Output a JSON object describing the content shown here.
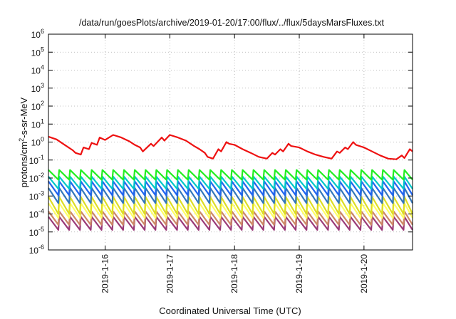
{
  "chart_data": {
    "type": "line",
    "title": "/data/run/goesPlots/archive/2019-01-20/17:00/flux/../flux/5daysMarsFluxes.txt",
    "xlabel": "Coordinated Universal Time (UTC)",
    "ylabel": "protons/cm2-s-sr-MeV",
    "ylabel_main": "protons/cm",
    "ylabel_sup": "2",
    "ylabel_rest": "-s-sr-MeV",
    "y_scale": "log",
    "ylim": [
      1e-06,
      1000000
    ],
    "y_ticks": [
      {
        "base": "10",
        "exp": "-6",
        "value": 1e-06
      },
      {
        "base": "10",
        "exp": "-5",
        "value": 1e-05
      },
      {
        "base": "10",
        "exp": "-4",
        "value": 0.0001
      },
      {
        "base": "10",
        "exp": "-3",
        "value": 0.001
      },
      {
        "base": "10",
        "exp": "-2",
        "value": 0.01
      },
      {
        "base": "10",
        "exp": "-1",
        "value": 0.1
      },
      {
        "base": "10",
        "exp": "0",
        "value": 1
      },
      {
        "base": "10",
        "exp": "1",
        "value": 10
      },
      {
        "base": "10",
        "exp": "2",
        "value": 100
      },
      {
        "base": "10",
        "exp": "3",
        "value": 1000
      },
      {
        "base": "10",
        "exp": "4",
        "value": 10000
      },
      {
        "base": "10",
        "exp": "5",
        "value": 100000
      },
      {
        "base": "10",
        "exp": "6",
        "value": 1000000
      }
    ],
    "xlim": [
      "2019-01-15T03:00",
      "2019-01-20T18:00"
    ],
    "x_ticks": [
      {
        "label": "2019-1-16",
        "value": "2019-01-16T00:00"
      },
      {
        "label": "2019-1-17",
        "value": "2019-01-17T00:00"
      },
      {
        "label": "2019-1-18",
        "value": "2019-01-18T00:00"
      },
      {
        "label": "2019-1-19",
        "value": "2019-01-19T00:00"
      },
      {
        "label": "2019-1-20",
        "value": "2019-01-20T00:00"
      }
    ],
    "grid": "dotted",
    "series": [
      {
        "color": "#ee1111",
        "x": [
          "2019-01-15T03:00",
          "2019-01-15T06:00",
          "2019-01-15T09:00",
          "2019-01-15T12:00",
          "2019-01-15T13:00",
          "2019-01-15T15:00",
          "2019-01-15T16:00",
          "2019-01-15T18:00",
          "2019-01-15T19:00",
          "2019-01-15T21:00",
          "2019-01-15T22:00",
          "2019-01-16T00:00",
          "2019-01-16T03:00",
          "2019-01-16T06:00",
          "2019-01-16T09:00",
          "2019-01-16T11:00",
          "2019-01-16T13:00",
          "2019-01-16T14:00",
          "2019-01-16T17:00",
          "2019-01-16T18:00",
          "2019-01-16T21:00",
          "2019-01-16T22:00",
          "2019-01-17T00:00",
          "2019-01-17T03:00",
          "2019-01-17T06:00",
          "2019-01-17T09:00",
          "2019-01-17T11:00",
          "2019-01-17T13:00",
          "2019-01-17T14:00",
          "2019-01-17T16:00",
          "2019-01-17T18:00",
          "2019-01-17T19:00",
          "2019-01-17T21:00",
          "2019-01-17T22:00",
          "2019-01-18T00:00",
          "2019-01-18T03:00",
          "2019-01-18T06:00",
          "2019-01-18T09:00",
          "2019-01-18T12:00",
          "2019-01-18T14:00",
          "2019-01-18T15:00",
          "2019-01-18T17:00",
          "2019-01-18T18:00",
          "2019-01-18T20:00",
          "2019-01-18T21:00",
          "2019-01-19T00:00",
          "2019-01-19T03:00",
          "2019-01-19T06:00",
          "2019-01-19T09:00",
          "2019-01-19T12:00",
          "2019-01-19T14:00",
          "2019-01-19T15:00",
          "2019-01-19T17:00",
          "2019-01-19T18:00",
          "2019-01-19T20:00",
          "2019-01-19T21:00",
          "2019-01-20T00:00",
          "2019-01-20T03:00",
          "2019-01-20T06:00",
          "2019-01-20T09:00",
          "2019-01-20T12:00",
          "2019-01-20T14:00",
          "2019-01-20T15:00",
          "2019-01-20T17:00",
          "2019-01-20T18:00"
        ],
        "values": [
          2.0,
          1.4,
          0.7,
          0.35,
          0.25,
          0.2,
          0.5,
          0.4,
          0.9,
          0.7,
          1.8,
          1.3,
          2.5,
          1.8,
          1.1,
          0.7,
          0.5,
          0.3,
          0.8,
          0.6,
          1.8,
          1.2,
          2.5,
          1.8,
          1.2,
          0.6,
          0.4,
          0.25,
          0.15,
          0.12,
          0.4,
          0.3,
          1.0,
          0.8,
          0.7,
          0.4,
          0.25,
          0.15,
          0.12,
          0.25,
          0.2,
          0.4,
          0.3,
          0.8,
          0.6,
          0.5,
          0.3,
          0.2,
          0.15,
          0.12,
          0.3,
          0.25,
          0.5,
          0.4,
          1.0,
          0.7,
          0.5,
          0.3,
          0.18,
          0.12,
          0.11,
          0.18,
          0.13,
          0.4,
          0.3
        ]
      },
      {
        "color": "#22ee22",
        "sawtooth": {
          "peak": 0.028,
          "trough": 0.008,
          "period_hours": 4
        }
      },
      {
        "color": "#00c8c8",
        "sawtooth": {
          "peak": 0.012,
          "trough": 0.0025,
          "period_hours": 4
        }
      },
      {
        "color": "#2266ee",
        "sawtooth": {
          "peak": 0.0065,
          "trough": 0.0011,
          "period_hours": 4
        }
      },
      {
        "color": "#3377bb",
        "sawtooth": {
          "peak": 0.0028,
          "trough": 0.0004,
          "period_hours": 4
        }
      },
      {
        "color": "#dddd22",
        "sawtooth": {
          "peak": 0.0009,
          "trough": 0.0001,
          "period_hours": 4
        }
      },
      {
        "color": "#ffff66",
        "sawtooth": {
          "peak": 0.0004,
          "trough": 6e-05,
          "period_hours": 4
        }
      },
      {
        "color": "#cc8866",
        "sawtooth": {
          "peak": 0.00014,
          "trough": 2.5e-05,
          "period_hours": 4
        }
      },
      {
        "color": "#9a3a78",
        "sawtooth": {
          "peak": 7e-05,
          "trough": 1.3e-05,
          "period_hours": 4
        }
      }
    ]
  }
}
